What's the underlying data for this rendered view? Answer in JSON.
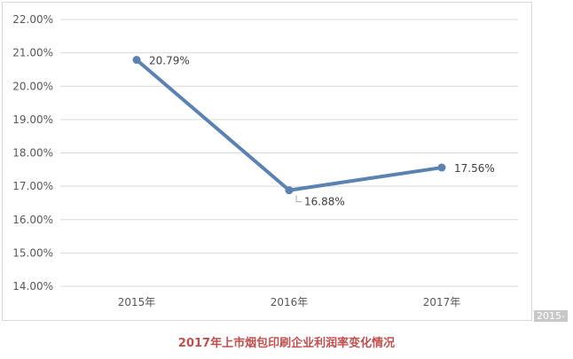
{
  "caption": "2017年上市烟包印刷企业利润率变化情况",
  "corner_mark": "2015-",
  "colors": {
    "line": "#5b82b0",
    "grid": "#d9d9d9",
    "caption": "#c0504d"
  },
  "chart_data": {
    "type": "line",
    "title": "",
    "xlabel": "",
    "ylabel": "",
    "categories": [
      "2015年",
      "2016年",
      "2017年"
    ],
    "series": [
      {
        "values": [
          20.79,
          16.88,
          17.56
        ],
        "labels": [
          "20.79%",
          "16.88%",
          "17.56%"
        ]
      }
    ],
    "ylim": [
      14,
      22
    ],
    "yticks": [
      "14.00%",
      "15.00%",
      "16.00%",
      "17.00%",
      "18.00%",
      "19.00%",
      "20.00%",
      "21.00%",
      "22.00%"
    ],
    "grid": true,
    "legend": "none"
  }
}
